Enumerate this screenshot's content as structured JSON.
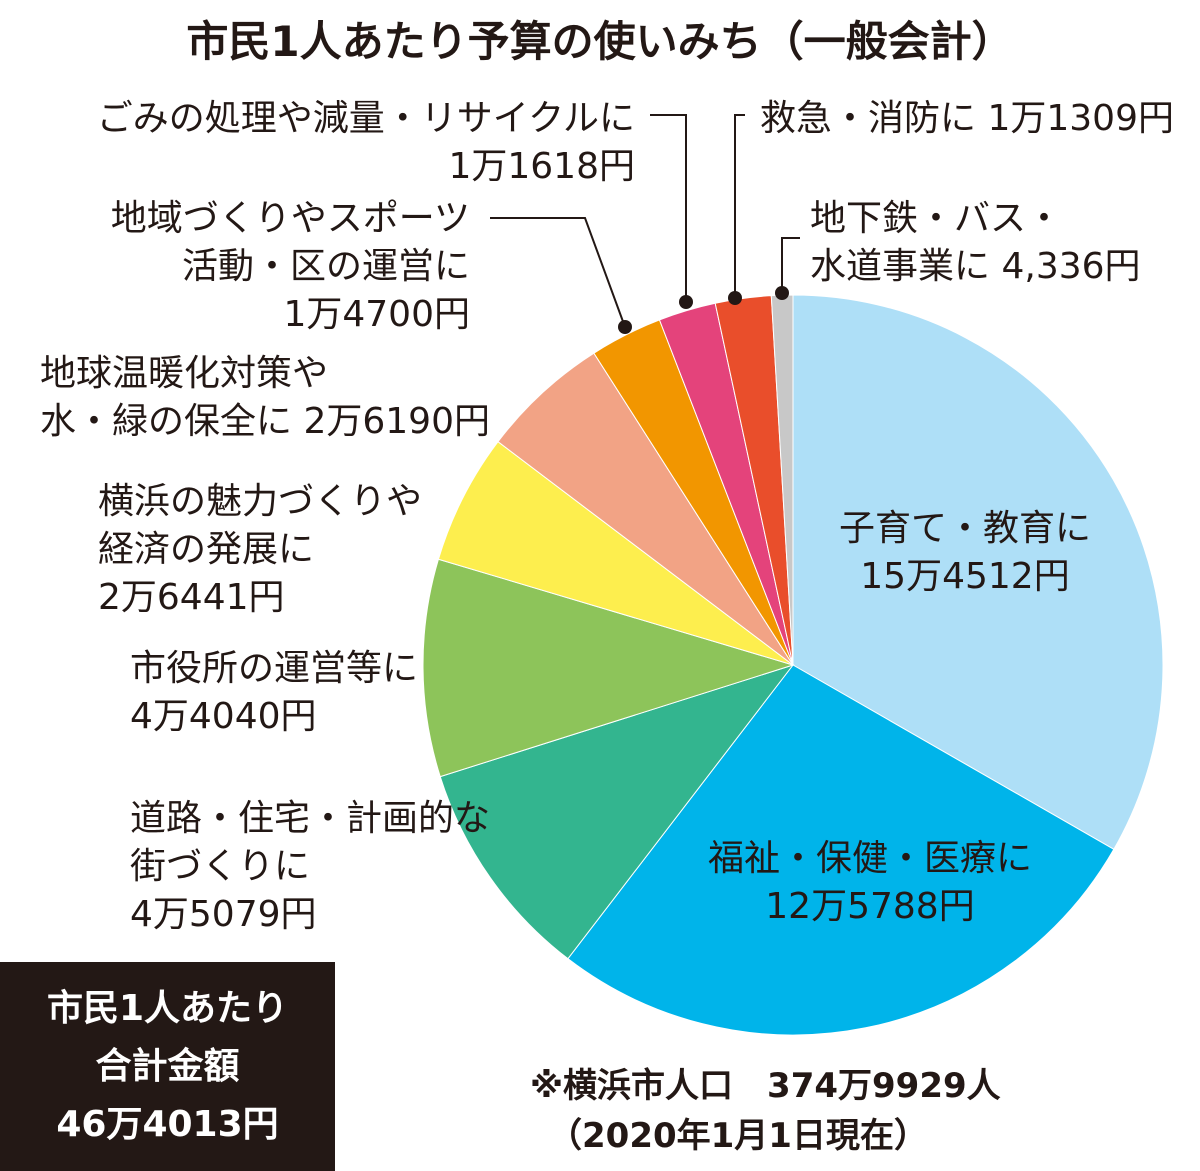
{
  "chart_data": {
    "type": "pie",
    "title": "市民1人あたり予算の使いみち（一般会計）",
    "categories": [
      "子育て・教育に",
      "福祉・保健・医療に",
      "道路・住宅・計画的な街づくりに",
      "市役所の運営等に",
      "横浜の魅力づくりや経済の発展に",
      "地球温暖化対策や水・緑の保全に",
      "地域づくりやスポーツ活動・区の運営に",
      "ごみの処理や減量・リサイクルに",
      "救急・消防に",
      "地下鉄・バス・水道事業に"
    ],
    "values": [
      154512,
      125788,
      45079,
      44040,
      26441,
      26190,
      14700,
      11618,
      11309,
      4336
    ],
    "value_labels": [
      "15万4512円",
      "12万5788円",
      "4万5079円",
      "4万4040円",
      "2万6441円",
      "2万6190円",
      "1万4700円",
      "1万1618円",
      "1万1309円",
      "4,336円"
    ],
    "colors": [
      "#aedff7",
      "#00b4ea",
      "#33b58f",
      "#8dc45a",
      "#fdee4e",
      "#f2a385",
      "#f29600",
      "#e4437b",
      "#e94e2b",
      "#c8c8c8"
    ],
    "total": {
      "title_lines": [
        "市民1人あたり",
        "合計金額"
      ],
      "value": 464013,
      "label": "46万4013円"
    },
    "note": [
      "※横浜市人口　374万9929人",
      "（2020年1月1日現在）"
    ]
  }
}
